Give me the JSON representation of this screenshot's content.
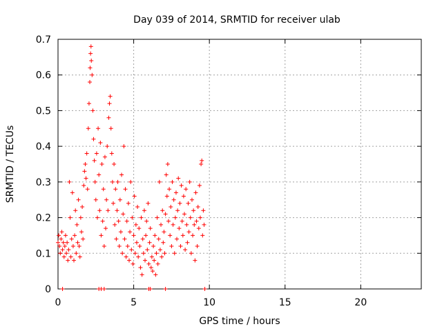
{
  "chart_data": {
    "type": "scatter",
    "title": "Day 039 of 2014, SRMTID for receiver ulab",
    "xlabel": "GPS time / hours",
    "ylabel": "SRMTID / TECUs",
    "xlim": [
      0,
      24
    ],
    "ylim": [
      0,
      0.7
    ],
    "xticks": [
      0,
      5,
      10,
      15,
      20
    ],
    "xtick_labels": [
      "0",
      "5",
      "10",
      "15",
      "20"
    ],
    "yticks": [
      0,
      0.1,
      0.2,
      0.3,
      0.4,
      0.5,
      0.6,
      0.7
    ],
    "ytick_labels": [
      "0",
      "0.1",
      "0.2",
      "0.3",
      "0.4",
      "0.5",
      "0.6",
      "0.7"
    ],
    "grid": true,
    "marker": "plus",
    "color": "#ff0000",
    "series": [
      {
        "name": "SRMTID",
        "points": [
          [
            0.0,
            0.13
          ],
          [
            0.05,
            0.15
          ],
          [
            0.1,
            0.12
          ],
          [
            0.15,
            0.1
          ],
          [
            0.2,
            0.14
          ],
          [
            0.25,
            0.16
          ],
          [
            0.3,
            0.11
          ],
          [
            0.35,
            0.13
          ],
          [
            0.4,
            0.09
          ],
          [
            0.45,
            0.12
          ],
          [
            0.5,
            0.15
          ],
          [
            0.55,
            0.1
          ],
          [
            0.6,
            0.13
          ],
          [
            0.65,
            0.08
          ],
          [
            0.7,
            0.11
          ],
          [
            0.75,
            0.3
          ],
          [
            0.8,
            0.2
          ],
          [
            0.85,
            0.09
          ],
          [
            0.9,
            0.14
          ],
          [
            0.95,
            0.27
          ],
          [
            1.0,
            0.12
          ],
          [
            1.05,
            0.08
          ],
          [
            1.1,
            0.15
          ],
          [
            1.15,
            0.22
          ],
          [
            1.2,
            0.1
          ],
          [
            1.25,
            0.18
          ],
          [
            1.3,
            0.13
          ],
          [
            1.35,
            0.25
          ],
          [
            1.4,
            0.12
          ],
          [
            1.45,
            0.09
          ],
          [
            1.5,
            0.2
          ],
          [
            1.55,
            0.16
          ],
          [
            1.6,
            0.23
          ],
          [
            1.65,
            0.14
          ],
          [
            1.7,
            0.29
          ],
          [
            1.75,
            0.33
          ],
          [
            1.8,
            0.35
          ],
          [
            1.85,
            0.31
          ],
          [
            1.9,
            0.38
          ],
          [
            1.95,
            0.28
          ],
          [
            2.0,
            0.45
          ],
          [
            2.05,
            0.52
          ],
          [
            2.1,
            0.58
          ],
          [
            2.12,
            0.62
          ],
          [
            2.15,
            0.66
          ],
          [
            2.18,
            0.68
          ],
          [
            2.2,
            0.64
          ],
          [
            2.25,
            0.6
          ],
          [
            2.3,
            0.5
          ],
          [
            2.35,
            0.42
          ],
          [
            2.4,
            0.36
          ],
          [
            2.45,
            0.3
          ],
          [
            2.5,
            0.25
          ],
          [
            2.55,
            0.38
          ],
          [
            2.6,
            0.2
          ],
          [
            2.65,
            0.45
          ],
          [
            2.7,
            0.32
          ],
          [
            2.75,
            0.22
          ],
          [
            2.8,
            0.41
          ],
          [
            2.85,
            0.15
          ],
          [
            2.9,
            0.35
          ],
          [
            2.95,
            0.19
          ],
          [
            3.0,
            0.28
          ],
          [
            3.05,
            0.12
          ],
          [
            3.1,
            0.37
          ],
          [
            3.15,
            0.17
          ],
          [
            3.2,
            0.25
          ],
          [
            3.25,
            0.4
          ],
          [
            3.3,
            0.22
          ],
          [
            3.35,
            0.48
          ],
          [
            3.4,
            0.52
          ],
          [
            3.45,
            0.54
          ],
          [
            3.5,
            0.45
          ],
          [
            3.55,
            0.38
          ],
          [
            3.6,
            0.3
          ],
          [
            3.65,
            0.24
          ],
          [
            3.7,
            0.35
          ],
          [
            3.75,
            0.18
          ],
          [
            3.8,
            0.28
          ],
          [
            3.85,
            0.14
          ],
          [
            3.9,
            0.22
          ],
          [
            3.95,
            0.3
          ],
          [
            4.0,
            0.19
          ],
          [
            4.05,
            0.12
          ],
          [
            4.1,
            0.25
          ],
          [
            4.15,
            0.16
          ],
          [
            4.2,
            0.32
          ],
          [
            4.25,
            0.1
          ],
          [
            4.3,
            0.21
          ],
          [
            4.35,
            0.4
          ],
          [
            4.4,
            0.14
          ],
          [
            4.45,
            0.28
          ],
          [
            4.5,
            0.09
          ],
          [
            4.55,
            0.19
          ],
          [
            4.6,
            0.12
          ],
          [
            4.65,
            0.24
          ],
          [
            4.7,
            0.08
          ],
          [
            4.75,
            0.16
          ],
          [
            4.8,
            0.3
          ],
          [
            4.85,
            0.11
          ],
          [
            4.9,
            0.2
          ],
          [
            4.95,
            0.07
          ],
          [
            5.0,
            0.15
          ],
          [
            5.05,
            0.26
          ],
          [
            5.1,
            0.1
          ],
          [
            5.15,
            0.18
          ],
          [
            5.2,
            0.13
          ],
          [
            5.25,
            0.23
          ],
          [
            5.3,
            0.09
          ],
          [
            5.35,
            0.17
          ],
          [
            5.4,
            0.12
          ],
          [
            5.45,
            0.06
          ],
          [
            5.5,
            0.2
          ],
          [
            5.55,
            0.04
          ],
          [
            5.6,
            0.14
          ],
          [
            5.65,
            0.1
          ],
          [
            5.7,
            0.22
          ],
          [
            5.75,
            0.08
          ],
          [
            5.8,
            0.15
          ],
          [
            5.85,
            0.19
          ],
          [
            5.9,
            0.11
          ],
          [
            5.95,
            0.24
          ],
          [
            6.0,
            0.07
          ],
          [
            6.05,
            0.13
          ],
          [
            6.1,
            0.17
          ],
          [
            6.15,
            0.06
          ],
          [
            6.2,
            0.09
          ],
          [
            6.25,
            0.05
          ],
          [
            6.3,
            0.12
          ],
          [
            6.35,
            0.08
          ],
          [
            6.4,
            0.15
          ],
          [
            6.45,
            0.04
          ],
          [
            6.5,
            0.1
          ],
          [
            6.55,
            0.2
          ],
          [
            6.6,
            0.07
          ],
          [
            6.65,
            0.14
          ],
          [
            6.7,
            0.3
          ],
          [
            6.75,
            0.11
          ],
          [
            6.8,
            0.18
          ],
          [
            6.85,
            0.09
          ],
          [
            6.9,
            0.22
          ],
          [
            6.95,
            0.13
          ],
          [
            7.0,
            0.16
          ],
          [
            7.05,
            0.1
          ],
          [
            7.1,
            0.21
          ],
          [
            7.15,
            0.32
          ],
          [
            7.2,
            0.26
          ],
          [
            7.25,
            0.35
          ],
          [
            7.3,
            0.19
          ],
          [
            7.35,
            0.28
          ],
          [
            7.4,
            0.15
          ],
          [
            7.45,
            0.23
          ],
          [
            7.5,
            0.12
          ],
          [
            7.55,
            0.3
          ],
          [
            7.6,
            0.18
          ],
          [
            7.65,
            0.25
          ],
          [
            7.7,
            0.1
          ],
          [
            7.75,
            0.2
          ],
          [
            7.8,
            0.27
          ],
          [
            7.85,
            0.14
          ],
          [
            7.9,
            0.22
          ],
          [
            7.95,
            0.31
          ],
          [
            8.0,
            0.17
          ],
          [
            8.05,
            0.24
          ],
          [
            8.1,
            0.12
          ],
          [
            8.15,
            0.29
          ],
          [
            8.2,
            0.19
          ],
          [
            8.25,
            0.15
          ],
          [
            8.3,
            0.26
          ],
          [
            8.35,
            0.21
          ],
          [
            8.4,
            0.11
          ],
          [
            8.45,
            0.28
          ],
          [
            8.5,
            0.18
          ],
          [
            8.55,
            0.13
          ],
          [
            8.6,
            0.24
          ],
          [
            8.65,
            0.16
          ],
          [
            8.7,
            0.3
          ],
          [
            8.75,
            0.2
          ],
          [
            8.8,
            0.1
          ],
          [
            8.85,
            0.25
          ],
          [
            8.9,
            0.15
          ],
          [
            8.95,
            0.22
          ],
          [
            9.0,
            0.18
          ],
          [
            9.05,
            0.08
          ],
          [
            9.1,
            0.27
          ],
          [
            9.15,
            0.19
          ],
          [
            9.2,
            0.12
          ],
          [
            9.25,
            0.23
          ],
          [
            9.3,
            0.17
          ],
          [
            9.35,
            0.29
          ],
          [
            9.4,
            0.2
          ],
          [
            9.45,
            0.35
          ],
          [
            9.5,
            0.36
          ],
          [
            9.55,
            0.15
          ],
          [
            9.6,
            0.22
          ],
          [
            9.65,
            0.18
          ],
          [
            0.3,
            0.0
          ],
          [
            2.7,
            0.0
          ],
          [
            2.85,
            0.0
          ],
          [
            3.05,
            0.0
          ],
          [
            6.0,
            0.0
          ],
          [
            6.1,
            0.0
          ],
          [
            7.1,
            0.0
          ],
          [
            9.7,
            0.0
          ]
        ]
      }
    ]
  }
}
